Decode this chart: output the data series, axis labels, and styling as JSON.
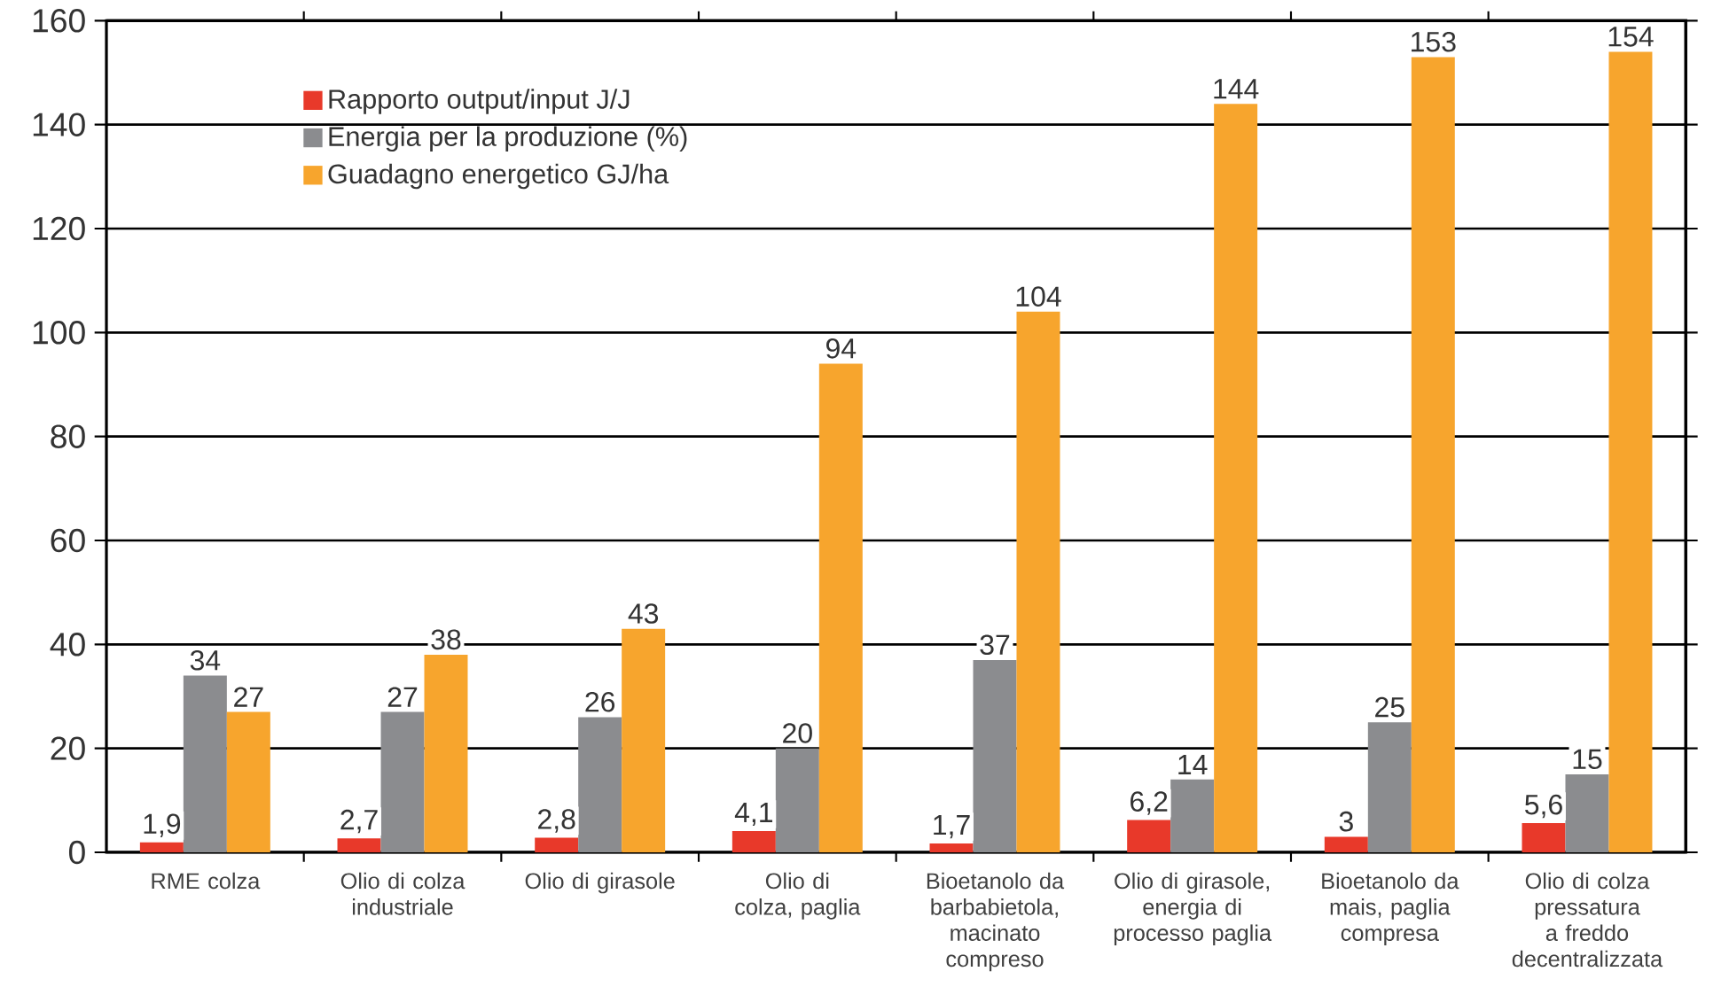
{
  "chart_data": {
    "type": "bar",
    "categories": [
      "RME colza",
      "Olio di colza industriale",
      "Olio di girasole",
      "Olio di colza, paglia",
      "Bioetanolo da barbabietola, macinato compreso",
      "Olio di girasole, energia di processo paglia",
      "Bioetanolo da mais, paglia compresa",
      "Olio di colza pressatura a freddo decentralizzata"
    ],
    "series": [
      {
        "name": "Rapporto output/input J/J",
        "color": "#e8392a",
        "values": [
          1.9,
          2.7,
          2.8,
          4.1,
          1.7,
          6.2,
          3,
          5.6
        ],
        "value_labels": [
          "1,9",
          "2,7",
          "2,8",
          "4,1",
          "1,7",
          "6,2",
          "3",
          "5,6"
        ]
      },
      {
        "name": "Energia per la produzione (%)",
        "color": "#8b8c8f",
        "values": [
          34,
          27,
          26,
          20,
          37,
          14,
          25,
          15
        ],
        "value_labels": [
          "34",
          "27",
          "26",
          "20",
          "37",
          "14",
          "25",
          "15"
        ]
      },
      {
        "name": "Guadagno energetico GJ/ha",
        "color": "#f7a52d",
        "values": [
          27,
          38,
          43,
          94,
          104,
          144,
          153,
          154
        ],
        "value_labels": [
          "27",
          "38",
          "43",
          "94",
          "104",
          "144",
          "153",
          "154"
        ]
      }
    ],
    "ylim": [
      0,
      160
    ],
    "yticks": [
      0,
      20,
      40,
      60,
      80,
      100,
      120,
      140,
      160
    ],
    "grid": "y",
    "legend": "top left"
  }
}
